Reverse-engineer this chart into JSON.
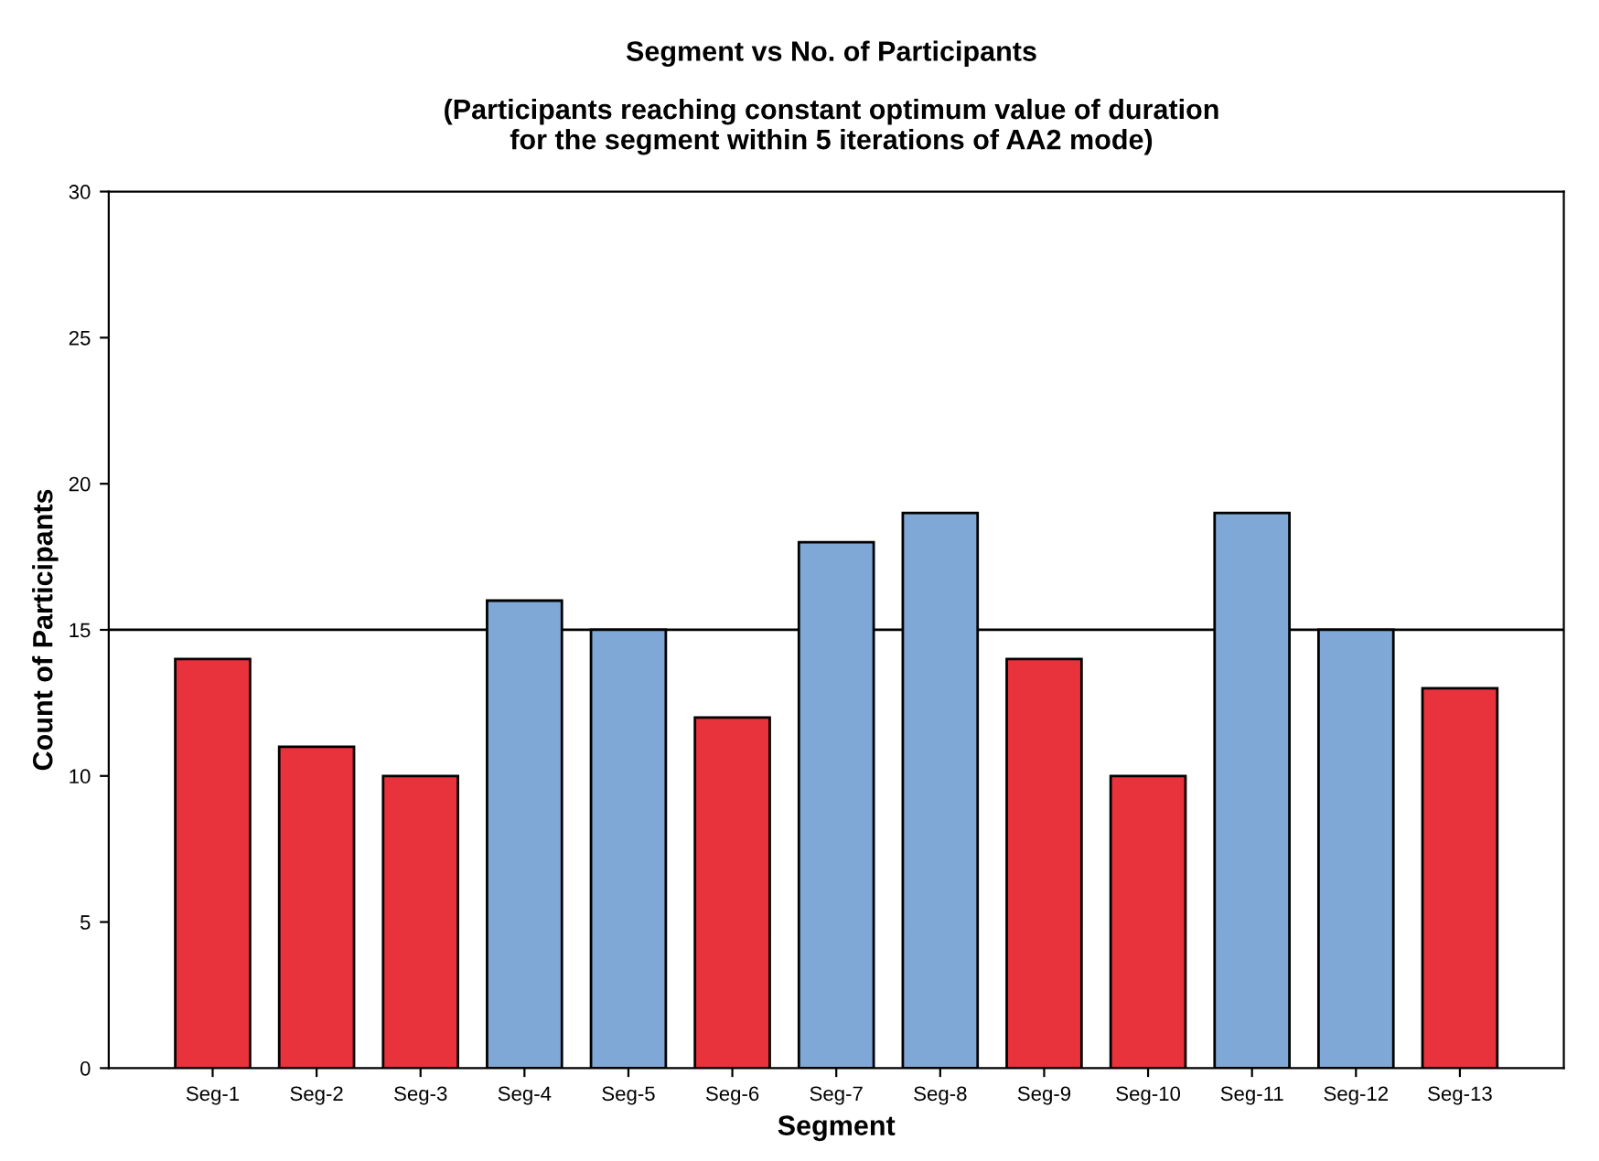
{
  "chart_data": {
    "type": "bar",
    "title": "Segment vs No. of Participants",
    "subtitle": "(Participants reaching constant optimum value of duration\nfor the segment within 5 iterations of AA2 mode)",
    "xlabel": "Segment",
    "ylabel": "Count of Participants",
    "categories": [
      "Seg-1",
      "Seg-2",
      "Seg-3",
      "Seg-4",
      "Seg-5",
      "Seg-6",
      "Seg-7",
      "Seg-8",
      "Seg-9",
      "Seg-10",
      "Seg-11",
      "Seg-12",
      "Seg-13"
    ],
    "values": [
      14,
      11,
      10,
      16,
      15,
      12,
      18,
      19,
      14,
      10,
      19,
      15,
      13
    ],
    "colors": [
      "#e8323c",
      "#e8323c",
      "#e8323c",
      "#7fa8d6",
      "#7fa8d6",
      "#e8323c",
      "#7fa8d6",
      "#7fa8d6",
      "#e8323c",
      "#e8323c",
      "#7fa8d6",
      "#7fa8d6",
      "#e8323c"
    ],
    "ylim": [
      0,
      30
    ],
    "yticks": [
      0,
      5,
      10,
      15,
      20,
      25,
      30
    ],
    "grid": false,
    "legend": false,
    "ref_lines": [
      {
        "axis": "y",
        "value": 15,
        "color": "#000000",
        "line_style": "solid"
      }
    ]
  }
}
